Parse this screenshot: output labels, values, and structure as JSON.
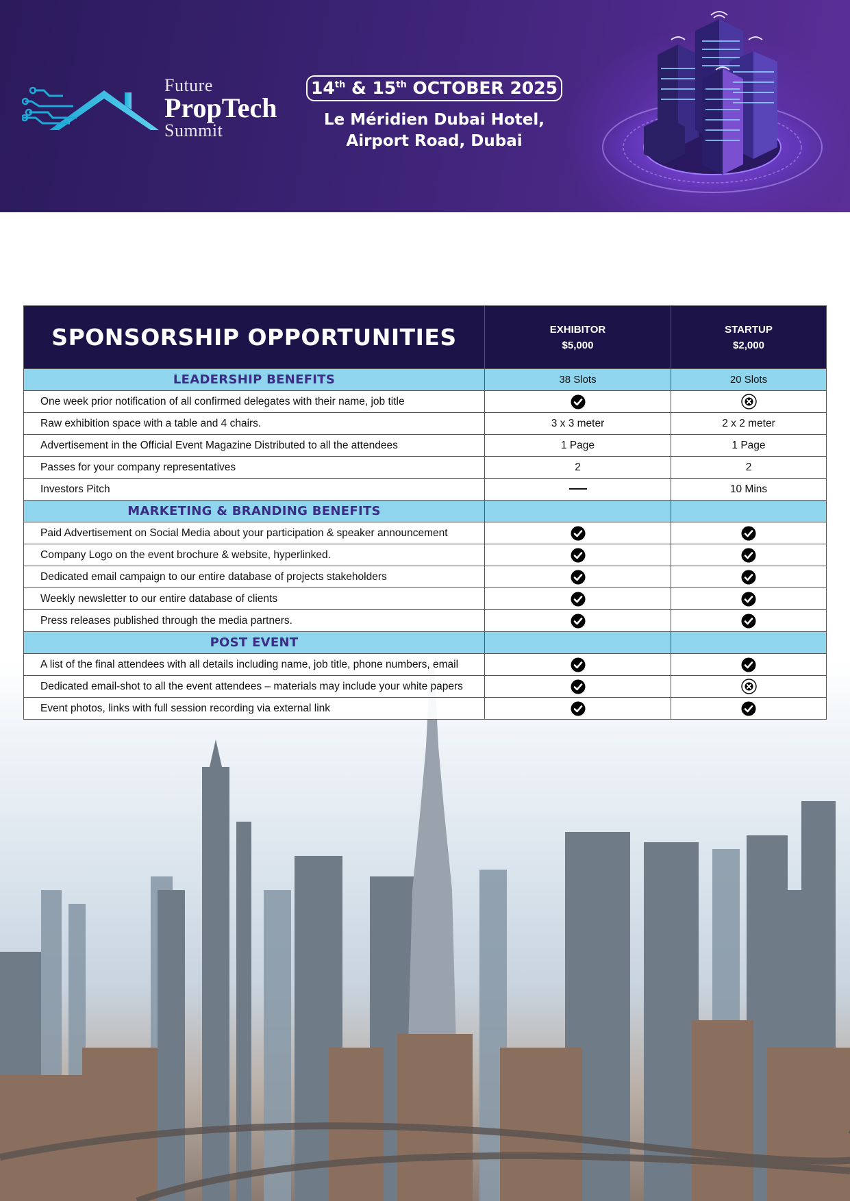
{
  "header": {
    "logo": {
      "line1": "Future",
      "line2": "PropTech",
      "line3": "Summit"
    },
    "date": {
      "day1": "14",
      "sup1": "th",
      "amp": "&",
      "day2": "15",
      "sup2": "th",
      "month_year": "OCTOBER 2025"
    },
    "venue_line1": "Le Méridien Dubai Hotel,",
    "venue_line2": "Airport Road, Dubai"
  },
  "table": {
    "title": "SPONSORSHIP OPPORTUNITIES",
    "tiers": [
      {
        "name": "EXHIBITOR",
        "price": "$5,000"
      },
      {
        "name": "STARTUP",
        "price": "$2,000"
      }
    ],
    "sections": [
      {
        "title": "LEADERSHIP  BENEFITS",
        "values": [
          "38 Slots",
          "20 Slots"
        ],
        "rows": [
          {
            "label": "One week prior notification of all confirmed delegates with their name, job title",
            "values": [
              "check",
              "cross"
            ]
          },
          {
            "label": "Raw exhibition space with a table and 4 chairs.",
            "values": [
              "3 x 3 meter",
              "2 x 2 meter"
            ]
          },
          {
            "label": "Advertisement in the Official Event Magazine Distributed to all the attendees",
            "values": [
              "1 Page",
              "1 Page"
            ]
          },
          {
            "label": "Passes for your company representatives",
            "values": [
              "2",
              "2"
            ]
          },
          {
            "label": "Investors Pitch",
            "values": [
              "dash",
              "10 Mins"
            ]
          }
        ]
      },
      {
        "title": "MARKETING & BRANDING BENEFITS",
        "values": [
          "",
          ""
        ],
        "rows": [
          {
            "label": "Paid Advertisement on Social Media about your participation & speaker announcement",
            "values": [
              "check",
              "check"
            ]
          },
          {
            "label": "Company Logo on the event brochure & website, hyperlinked.",
            "values": [
              "check",
              "check"
            ]
          },
          {
            "label": "Dedicated email campaign to our entire database of projects stakeholders",
            "values": [
              "check",
              "check"
            ]
          },
          {
            "label": "Weekly newsletter to our entire database of clients",
            "values": [
              "check",
              "check"
            ]
          },
          {
            "label": "Press releases published through the media partners.",
            "values": [
              "check",
              "check"
            ]
          }
        ]
      },
      {
        "title": "POST EVENT",
        "values": [
          "",
          ""
        ],
        "rows": [
          {
            "label": "A list of the final attendees with all details including name, job title, phone numbers, email",
            "values": [
              "check",
              "check"
            ]
          },
          {
            "label": "Dedicated email-shot to all the event attendees – materials may include your white papers",
            "values": [
              "check",
              "cross"
            ]
          },
          {
            "label": "Event photos, links with full session recording via external link",
            "values": [
              "check",
              "check"
            ]
          }
        ]
      }
    ]
  },
  "colors": {
    "banner": "#3a2272",
    "table_header": "#1c1448",
    "section_bg": "#8fd5ee",
    "section_text": "#3b2c85"
  },
  "icons": {
    "check": "check-circle-icon",
    "cross": "cross-circle-icon",
    "dash": "dash-icon"
  }
}
